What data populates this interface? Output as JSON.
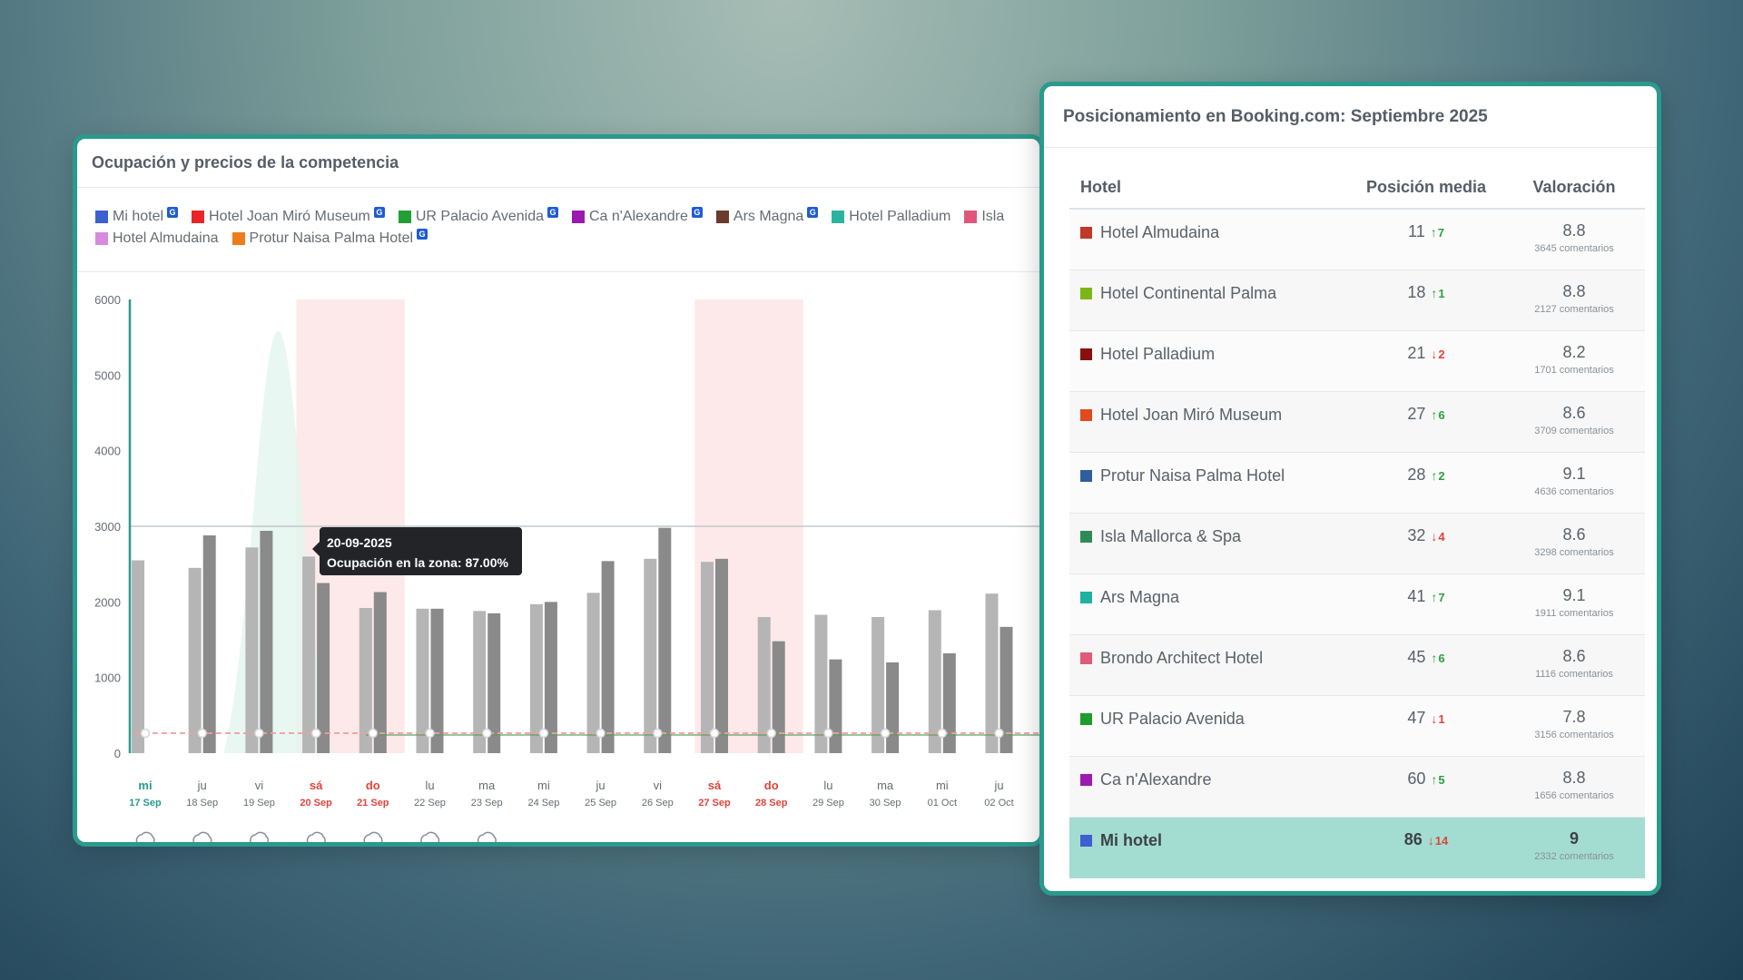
{
  "chart_card": {
    "title": "Ocupación y precios de la competencia",
    "legend_row1": [
      {
        "label": "Mi hotel",
        "color": "#3d5fd0",
        "badge": "G"
      },
      {
        "label": "Hotel Joan Miró Museum",
        "color": "#e8262a",
        "badge": "G"
      },
      {
        "label": "UR Palacio Avenida",
        "color": "#22a033",
        "badge": "G"
      },
      {
        "label": "Ca n'Alexandre",
        "color": "#9a1ab0",
        "badge": "G"
      },
      {
        "label": "Ars Magna",
        "color": "#6a3b2c",
        "badge": "G"
      },
      {
        "label": "Hotel Palladium",
        "color": "#2bb3a0",
        "badge": ""
      },
      {
        "label": "Isla",
        "color": "#e0567a",
        "badge": ""
      }
    ],
    "legend_row2": [
      {
        "label": "Hotel Almudaina",
        "color": "#d88ae0",
        "badge": ""
      },
      {
        "label": "Protur Naisa Palma Hotel",
        "color": "#ef7c1a",
        "badge": "G"
      }
    ],
    "tooltip": {
      "date": "20-09-2025",
      "text": "Ocupación en la zona: 87.00%"
    }
  },
  "chart_data": {
    "type": "bar",
    "y_ticks": [
      "6000",
      "5000",
      "4000",
      "3000",
      "2000",
      "1000",
      "0"
    ],
    "ylim": [
      0,
      6000
    ],
    "reference_line": 3000,
    "categories": [
      {
        "day": "mi",
        "date": "17 Sep",
        "status": "today"
      },
      {
        "day": "ju",
        "date": "18 Sep",
        "status": ""
      },
      {
        "day": "vi",
        "date": "19 Sep",
        "status": ""
      },
      {
        "day": "sá",
        "date": "20 Sep",
        "status": "weekend"
      },
      {
        "day": "do",
        "date": "21 Sep",
        "status": "weekend"
      },
      {
        "day": "lu",
        "date": "22 Sep",
        "status": ""
      },
      {
        "day": "ma",
        "date": "23 Sep",
        "status": ""
      },
      {
        "day": "mi",
        "date": "24 Sep",
        "status": ""
      },
      {
        "day": "ju",
        "date": "25 Sep",
        "status": ""
      },
      {
        "day": "vi",
        "date": "26 Sep",
        "status": ""
      },
      {
        "day": "sá",
        "date": "27 Sep",
        "status": "weekend"
      },
      {
        "day": "do",
        "date": "28 Sep",
        "status": "weekend"
      },
      {
        "day": "lu",
        "date": "29 Sep",
        "status": ""
      },
      {
        "day": "ma",
        "date": "30 Sep",
        "status": ""
      },
      {
        "day": "mi",
        "date": "01 Oct",
        "status": ""
      },
      {
        "day": "ju",
        "date": "02 Oct",
        "status": ""
      }
    ],
    "series": [
      {
        "values": [
          2550,
          2450,
          2720,
          2600,
          1920,
          1910,
          1880,
          1970,
          2120,
          2570,
          2530,
          1800,
          1830,
          1800,
          1890,
          2110
        ]
      },
      {
        "values": [
          null,
          2880,
          2940,
          2250,
          2130,
          1910,
          1850,
          2000,
          2540,
          2980,
          2570,
          1480,
          1240,
          1200,
          1320,
          1670
        ]
      }
    ],
    "highlight_ranges": [
      [
        3,
        4
      ],
      [
        10,
        11
      ]
    ],
    "occupancy_peak_index": 2,
    "colors": {
      "bar_light": "#b5b5b5",
      "bar_dark": "#8a8a8a",
      "weekend_band": "#fde9e9",
      "axis": "#2a9a8d",
      "peak": "#e2f5ee"
    }
  },
  "rank_card": {
    "title": "Posicionamiento en Booking.com: Septiembre 2025",
    "headers": {
      "hotel": "Hotel",
      "position": "Posición media",
      "rating": "Valoración"
    },
    "rows": [
      {
        "color": "#c0392b",
        "name": "Hotel Almudaina",
        "position": "11",
        "trend_dir": "up",
        "trend": "7",
        "rating": "8.8",
        "reviews": "3645 comentarios"
      },
      {
        "color": "#7cb518",
        "name": "Hotel Continental Palma",
        "position": "18",
        "trend_dir": "up",
        "trend": "1",
        "rating": "8.8",
        "reviews": "2127 comentarios"
      },
      {
        "color": "#8b0f0f",
        "name": "Hotel Palladium",
        "position": "21",
        "trend_dir": "down",
        "trend": "2",
        "rating": "8.2",
        "reviews": "1701 comentarios"
      },
      {
        "color": "#e04a1f",
        "name": "Hotel Joan Miró Museum",
        "position": "27",
        "trend_dir": "up",
        "trend": "6",
        "rating": "8.6",
        "reviews": "3709 comentarios"
      },
      {
        "color": "#2f5e9e",
        "name": "Protur Naisa Palma Hotel",
        "position": "28",
        "trend_dir": "up",
        "trend": "2",
        "rating": "9.1",
        "reviews": "4636 comentarios"
      },
      {
        "color": "#2e8b57",
        "name": "Isla Mallorca & Spa",
        "position": "32",
        "trend_dir": "down",
        "trend": "4",
        "rating": "8.6",
        "reviews": "3298 comentarios"
      },
      {
        "color": "#20b2a0",
        "name": "Ars Magna",
        "position": "41",
        "trend_dir": "up",
        "trend": "7",
        "rating": "9.1",
        "reviews": "1911 comentarios"
      },
      {
        "color": "#e05a7a",
        "name": "Brondo Architect Hotel",
        "position": "45",
        "trend_dir": "up",
        "trend": "6",
        "rating": "8.6",
        "reviews": "1116 comentarios"
      },
      {
        "color": "#1f9a2e",
        "name": "UR Palacio Avenida",
        "position": "47",
        "trend_dir": "down",
        "trend": "1",
        "rating": "7.8",
        "reviews": "3156 comentarios"
      },
      {
        "color": "#9b1bb0",
        "name": "Ca n'Alexandre",
        "position": "60",
        "trend_dir": "up",
        "trend": "5",
        "rating": "8.8",
        "reviews": "1656 comentarios"
      },
      {
        "color": "#3d5fd0",
        "name": "Mi hotel",
        "position": "86",
        "trend_dir": "down",
        "trend": "14",
        "rating": "9",
        "reviews": "2332 comentarios",
        "highlight": true
      }
    ]
  }
}
